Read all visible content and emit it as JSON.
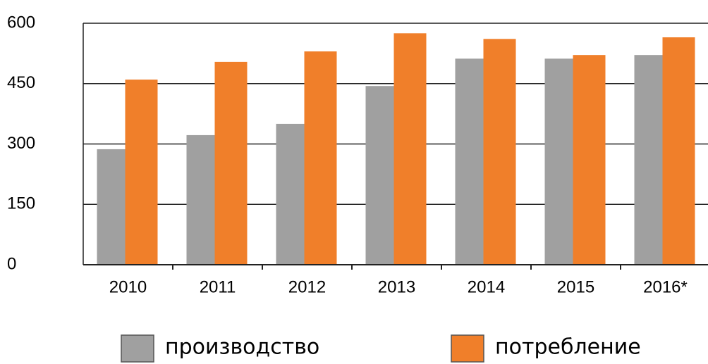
{
  "chart_data": {
    "type": "bar",
    "categories": [
      "2010",
      "2011",
      "2012",
      "2013",
      "2014",
      "2015",
      "2016*"
    ],
    "series": [
      {
        "name": "производство",
        "color": "#a0a0a0",
        "values": [
          287,
          322,
          350,
          444,
          512,
          512,
          521
        ]
      },
      {
        "name": "потребление",
        "color": "#f07f2a",
        "values": [
          460,
          504,
          530,
          575,
          561,
          521,
          565
        ]
      }
    ],
    "ylim": [
      0,
      600
    ],
    "yticks": [
      0,
      150,
      300,
      450,
      600
    ],
    "grid": true,
    "legend": "bottom"
  }
}
